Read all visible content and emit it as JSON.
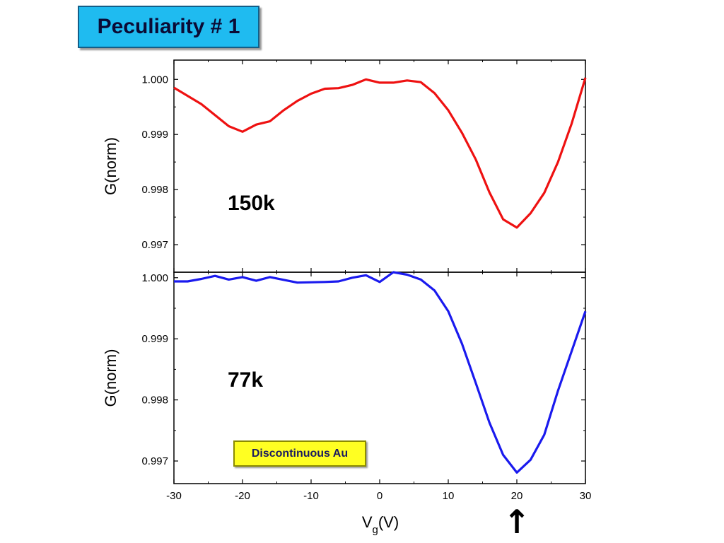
{
  "slide": {
    "title": "Peculiarity # 1",
    "note": "Discontinuous Au",
    "arrow_symbol": "↑",
    "arrow_x": 20
  },
  "chart_data": {
    "type": "line",
    "xlabel_main": "V",
    "xlabel_sub": "g",
    "xlabel_tail": "(V)",
    "xlim": [
      -30,
      30
    ],
    "x_ticks": [
      -30,
      -20,
      -10,
      0,
      10,
      20,
      30
    ],
    "x_tick_labels": [
      "-30",
      "-20",
      "-10",
      "0",
      "10",
      "20",
      "30"
    ],
    "panels": [
      {
        "label": "150k",
        "ylabel": "G(norm)",
        "ylim": [
          0.9965,
          1.00035
        ],
        "y_ticks": [
          0.997,
          0.998,
          0.999,
          1.0
        ],
        "y_tick_labels": [
          "0.997",
          "0.998",
          "0.999",
          "1.000"
        ],
        "color": "#ee1111",
        "x": [
          -30,
          -28,
          -26,
          -24,
          -22,
          -20,
          -18,
          -16,
          -14,
          -12,
          -10,
          -8,
          -6,
          -4,
          -2,
          0,
          2,
          4,
          6,
          8,
          10,
          12,
          14,
          16,
          18,
          20,
          22,
          24,
          26,
          28,
          30
        ],
        "y": [
          0.99985,
          0.9997,
          0.99955,
          0.99935,
          0.99915,
          0.99905,
          0.99918,
          0.99924,
          0.99944,
          0.99961,
          0.99974,
          0.99983,
          0.99984,
          0.9999,
          1.0,
          0.99994,
          0.99994,
          0.99998,
          0.99995,
          0.99975,
          0.99944,
          0.99903,
          0.99855,
          0.99795,
          0.99746,
          0.99731,
          0.99757,
          0.99794,
          0.9985,
          0.9992,
          1.00003
        ]
      },
      {
        "label": "77k",
        "ylabel": "G(norm)",
        "ylim": [
          0.99663,
          1.00009
        ],
        "y_ticks": [
          0.997,
          0.998,
          0.999,
          1.0
        ],
        "y_tick_labels": [
          "0.997",
          "0.998",
          "0.999",
          "1.000"
        ],
        "color": "#1a1aee",
        "x": [
          -30,
          -28,
          -26,
          -24,
          -22,
          -20,
          -18,
          -16,
          -12,
          -8,
          -6,
          -4,
          -2,
          0,
          2,
          4,
          6,
          8,
          10,
          12,
          14,
          16,
          18,
          20,
          22,
          24,
          26,
          28,
          30
        ],
        "y": [
          0.99994,
          0.99994,
          0.99998,
          1.00003,
          0.99997,
          1.00001,
          0.99995,
          1.00001,
          0.99992,
          0.99993,
          0.99994,
          1.0,
          1.00004,
          0.99993,
          1.00009,
          1.00005,
          0.99997,
          0.99979,
          0.99945,
          0.99892,
          0.99828,
          0.99763,
          0.9971,
          0.99681,
          0.99702,
          0.99743,
          0.99815,
          0.9988,
          0.99945
        ]
      }
    ]
  }
}
